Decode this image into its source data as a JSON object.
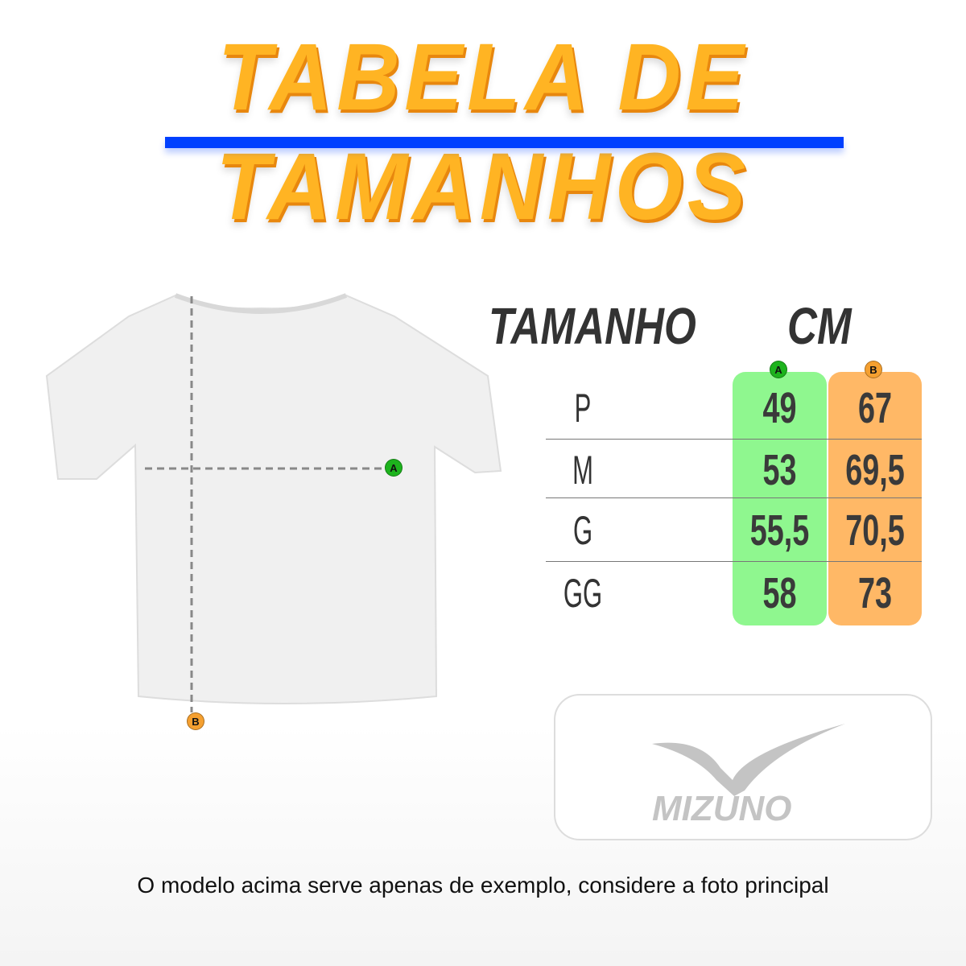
{
  "title": "TABELA DE TAMANHOS",
  "table": {
    "header_size": "TAMANHO",
    "header_unit": "CM",
    "col_a_badge": "A",
    "col_b_badge": "B",
    "rows": [
      {
        "size": "P",
        "a": "49",
        "b": "67"
      },
      {
        "size": "M",
        "a": "53",
        "b": "69,5"
      },
      {
        "size": "G",
        "a": "55,5",
        "b": "70,5"
      },
      {
        "size": "GG",
        "a": "58",
        "b": "73"
      }
    ]
  },
  "diagram": {
    "marker_a": "A",
    "marker_b": "B"
  },
  "logo": {
    "brand": "MIZUNO"
  },
  "footer": "O modelo acima serve apenas de exemplo, considere a foto principal",
  "colors": {
    "title": "#FFB423",
    "bar": "#0040FF",
    "col_a": "#8FF78F",
    "col_b": "#FFB866",
    "badge_a": "#1DB31D",
    "badge_b": "#F5A030"
  }
}
